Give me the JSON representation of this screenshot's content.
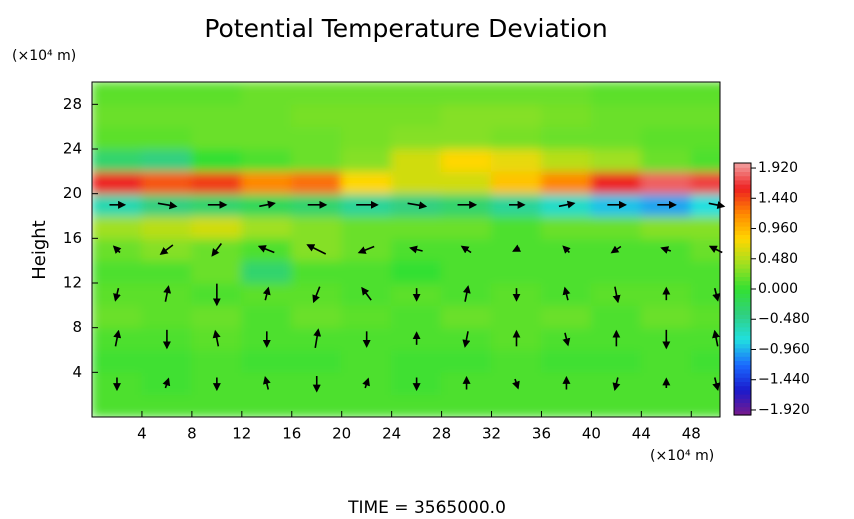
{
  "chart_data": {
    "type": "heatmap",
    "title": "Potential Temperature Deviation",
    "y_label": "Height",
    "y_unit": "(×10⁴ m)",
    "x_unit": "(×10⁴ m)",
    "footer": "TIME = 3565000.0",
    "xlim": [
      0,
      50.3
    ],
    "ylim": [
      0,
      30
    ],
    "xticks": [
      4,
      8,
      12,
      16,
      20,
      24,
      28,
      32,
      36,
      40,
      44,
      48
    ],
    "yticks": [
      4,
      8,
      12,
      16,
      20,
      24,
      28
    ],
    "x": [
      2,
      6,
      10,
      14,
      18,
      22,
      26,
      30,
      34,
      38,
      42,
      46,
      50
    ],
    "y": [
      1,
      3,
      5,
      7,
      9,
      11,
      13,
      15,
      17,
      19,
      21,
      23,
      25,
      27,
      29
    ],
    "z": [
      [
        0.1,
        0.1,
        0.1,
        0.1,
        0.1,
        0.1,
        0.1,
        0.1,
        0.1,
        0.1,
        0.1,
        0.1,
        0.1
      ],
      [
        0.1,
        0.05,
        0.1,
        0.1,
        0.1,
        0.1,
        0.05,
        0.1,
        0.1,
        0.1,
        0.1,
        0.1,
        0.1
      ],
      [
        0.05,
        0.05,
        0.1,
        0.05,
        0.05,
        0.1,
        0.05,
        0.05,
        0.1,
        0.05,
        0.05,
        0.1,
        0.05
      ],
      [
        0.1,
        0.1,
        0.15,
        0.1,
        0.1,
        0.1,
        0.1,
        0.1,
        0.15,
        0.1,
        0.1,
        0.1,
        0.1
      ],
      [
        0.2,
        0.15,
        0.2,
        0.1,
        0.2,
        0.15,
        0.1,
        0.2,
        0.15,
        0.2,
        0.1,
        0.2,
        0.15
      ],
      [
        0.15,
        0.15,
        0.1,
        0.15,
        0.15,
        0.1,
        0.15,
        0.1,
        0.15,
        0.1,
        0.15,
        0.15,
        0.1
      ],
      [
        0.1,
        0.1,
        0.2,
        -0.3,
        0.1,
        0.1,
        0.0,
        0.1,
        0.1,
        0.1,
        0.1,
        0.1,
        0.1
      ],
      [
        0.2,
        0.3,
        0.2,
        0.1,
        0.3,
        0.2,
        0.1,
        0.1,
        0.1,
        0.1,
        0.1,
        0.1,
        0.2
      ],
      [
        0.4,
        0.5,
        0.6,
        0.4,
        0.3,
        0.2,
        0.2,
        0.2,
        0.1,
        0.2,
        0.2,
        0.3,
        0.3
      ],
      [
        -0.6,
        -0.4,
        -0.3,
        -0.2,
        -0.3,
        -0.5,
        -0.4,
        -0.3,
        -0.5,
        -0.7,
        -0.9,
        -1.0,
        -0.8
      ],
      [
        1.6,
        1.4,
        1.5,
        1.2,
        1.3,
        0.8,
        0.6,
        0.6,
        0.9,
        1.2,
        1.6,
        1.8,
        1.7
      ],
      [
        -0.3,
        -0.4,
        0.0,
        0.1,
        0.2,
        0.3,
        0.6,
        0.8,
        0.7,
        0.5,
        0.4,
        0.2,
        0.1
      ],
      [
        0.15,
        0.15,
        0.2,
        0.2,
        0.2,
        0.25,
        0.3,
        0.3,
        0.25,
        0.2,
        0.2,
        0.15,
        0.15
      ],
      [
        0.2,
        0.2,
        0.2,
        0.2,
        0.25,
        0.25,
        0.25,
        0.3,
        0.3,
        0.25,
        0.2,
        0.2,
        0.2
      ],
      [
        0.15,
        0.15,
        0.15,
        0.2,
        0.2,
        0.2,
        0.2,
        0.2,
        0.2,
        0.2,
        0.15,
        0.15,
        0.15
      ]
    ],
    "zlim": [
      -2.0,
      2.0
    ],
    "colormap": [
      "#7a1a8a",
      "#1a1acc",
      "#1a6aff",
      "#20e0e0",
      "#30d080",
      "#33e033",
      "#a0e020",
      "#ffd700",
      "#ff8800",
      "#ee2020",
      "#f2a0a0"
    ],
    "colorbar_ticks": [
      {
        "value": 1.92,
        "label": "1.920"
      },
      {
        "value": 1.44,
        "label": "1.440"
      },
      {
        "value": 0.96,
        "label": "0.960"
      },
      {
        "value": 0.48,
        "label": "0.480"
      },
      {
        "value": 0,
        "label": "0.000"
      },
      {
        "value": -0.48,
        "label": "−0.480"
      },
      {
        "value": -0.96,
        "label": "−0.960"
      },
      {
        "value": -1.44,
        "label": "−1.440"
      },
      {
        "value": -1.92,
        "label": "−1.920"
      }
    ],
    "vectors": {
      "x": [
        2,
        6,
        10,
        14,
        18,
        22,
        26,
        30,
        34,
        38,
        42,
        46,
        50
      ],
      "y": [
        3,
        7,
        11,
        15,
        19
      ],
      "u": [
        [
          0,
          1,
          0,
          -1,
          0,
          1,
          0,
          0,
          1,
          0,
          -1,
          0,
          1
        ],
        [
          1,
          0,
          -1,
          0,
          1,
          0,
          0,
          -1,
          0,
          1,
          0,
          0,
          -1
        ],
        [
          -1,
          1,
          0,
          1,
          -2,
          -3,
          0,
          1,
          0,
          -1,
          1,
          0,
          1
        ],
        [
          -2,
          -4,
          -3,
          -5,
          -6,
          -5,
          -4,
          -3,
          -2,
          -2,
          -3,
          -3,
          -4
        ],
        [
          5,
          6,
          6,
          5,
          6,
          7,
          6,
          6,
          5,
          5,
          6,
          6,
          5
        ]
      ],
      "w": [
        [
          -4,
          3,
          -4,
          4,
          -5,
          3,
          -4,
          4,
          -3,
          4,
          -4,
          3,
          -4
        ],
        [
          5,
          -6,
          5,
          -5,
          6,
          -5,
          4,
          -5,
          5,
          -4,
          5,
          -6,
          5
        ],
        [
          -4,
          5,
          -7,
          4,
          -5,
          4,
          -4,
          5,
          -4,
          4,
          -5,
          4,
          -4
        ],
        [
          2,
          -3,
          -4,
          2,
          3,
          -2,
          1,
          2,
          -1,
          2,
          -2,
          1,
          2
        ],
        [
          0,
          -1,
          0,
          1,
          0,
          0,
          -1,
          0,
          0,
          1,
          0,
          0,
          -1
        ]
      ]
    }
  }
}
